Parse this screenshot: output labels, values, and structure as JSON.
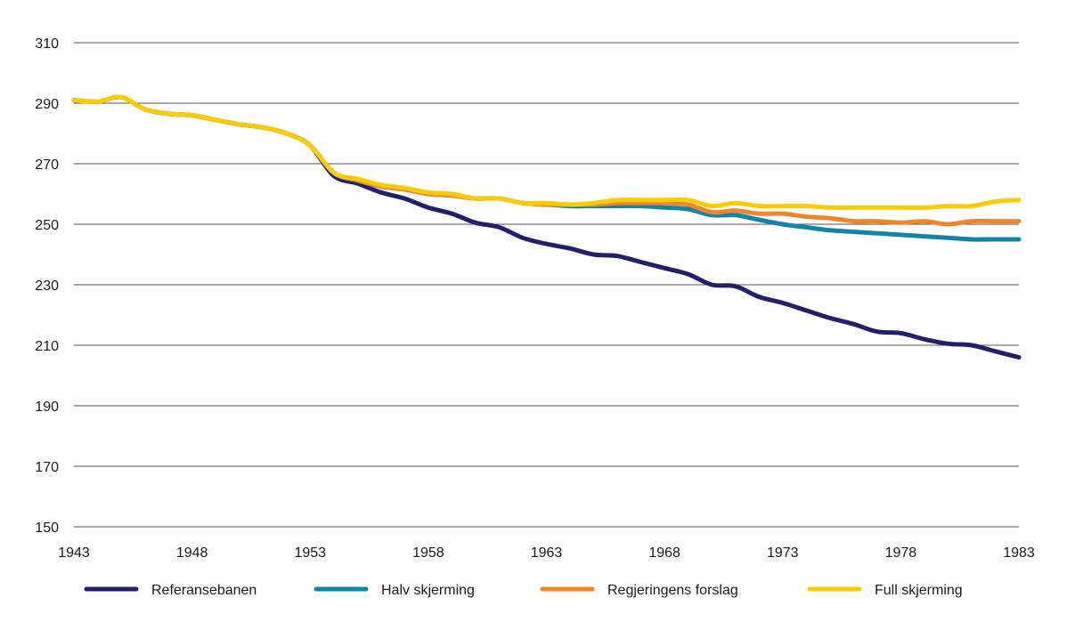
{
  "chart_data": {
    "type": "line",
    "title": "",
    "xlabel": "",
    "ylabel": "",
    "xlim": [
      1943,
      1983
    ],
    "ylim": [
      150,
      310
    ],
    "grid": true,
    "legend_position": "bottom",
    "x_ticks": [
      1943,
      1948,
      1953,
      1958,
      1963,
      1968,
      1973,
      1978,
      1983
    ],
    "x_tick_labels": [
      "1943",
      "1948",
      "1953",
      "1958",
      "1963",
      "1968",
      "1973",
      "1978",
      "1983"
    ],
    "y_ticks": [
      150,
      170,
      190,
      210,
      230,
      250,
      270,
      290,
      310
    ],
    "y_tick_labels": [
      "150",
      "170",
      "190",
      "210",
      "230",
      "250",
      "270",
      "290",
      "310"
    ],
    "x": [
      1943,
      1944,
      1945,
      1946,
      1947,
      1948,
      1949,
      1950,
      1951,
      1952,
      1953,
      1954,
      1955,
      1956,
      1957,
      1958,
      1959,
      1960,
      1961,
      1962,
      1963,
      1964,
      1965,
      1966,
      1967,
      1968,
      1969,
      1970,
      1971,
      1972,
      1973,
      1974,
      1975,
      1976,
      1977,
      1978,
      1979,
      1980,
      1981,
      1982,
      1983
    ],
    "series": [
      {
        "name": "Referansebanen",
        "color": "#23206b",
        "values": [
          291,
          290.5,
          292,
          288,
          286.5,
          286,
          284.5,
          283,
          282,
          280,
          276,
          266,
          263.5,
          260.5,
          258.5,
          255.5,
          253.5,
          250.5,
          249,
          245.5,
          243.5,
          242,
          240,
          239.5,
          237.5,
          235.5,
          233.5,
          230,
          229.5,
          226,
          224,
          221.5,
          219,
          217,
          214.5,
          214,
          212,
          210.5,
          210,
          208,
          206
        ]
      },
      {
        "name": "Halv skjerming",
        "color": "#0f86a6",
        "values": [
          291,
          290.5,
          292,
          288,
          286.5,
          286,
          284.5,
          283,
          282,
          280,
          276,
          267,
          264.5,
          262.5,
          261.5,
          260,
          259.5,
          258.5,
          258.5,
          257,
          256.5,
          256,
          256,
          256,
          256,
          255.5,
          255,
          253,
          253,
          251.5,
          250,
          249,
          248,
          247.5,
          247,
          246.5,
          246,
          245.5,
          245,
          245,
          245
        ]
      },
      {
        "name": "Regjeringens forslag",
        "color": "#f0862a",
        "values": [
          291,
          290.5,
          292,
          288,
          286.5,
          286,
          284.5,
          283,
          282,
          280,
          276,
          267,
          264.5,
          262.5,
          261.5,
          260,
          259.5,
          258.5,
          258.5,
          257,
          256.5,
          256.5,
          256.5,
          257,
          257,
          257,
          256.5,
          254,
          254.5,
          253.5,
          253.5,
          252.5,
          252,
          251,
          251,
          250.5,
          251,
          250,
          251,
          251,
          251
        ]
      },
      {
        "name": "Full skjerming",
        "color": "#fbcc05",
        "values": [
          291,
          290.5,
          292,
          288,
          286.5,
          286,
          284.5,
          283,
          282,
          280,
          276,
          267,
          265,
          263,
          262,
          260.5,
          260,
          258.5,
          258.5,
          257,
          257,
          256.5,
          257,
          258,
          258,
          258,
          258,
          256,
          257,
          256,
          256,
          256,
          255.5,
          255.5,
          255.5,
          255.5,
          255.5,
          256,
          256,
          257.5,
          258
        ]
      }
    ]
  }
}
